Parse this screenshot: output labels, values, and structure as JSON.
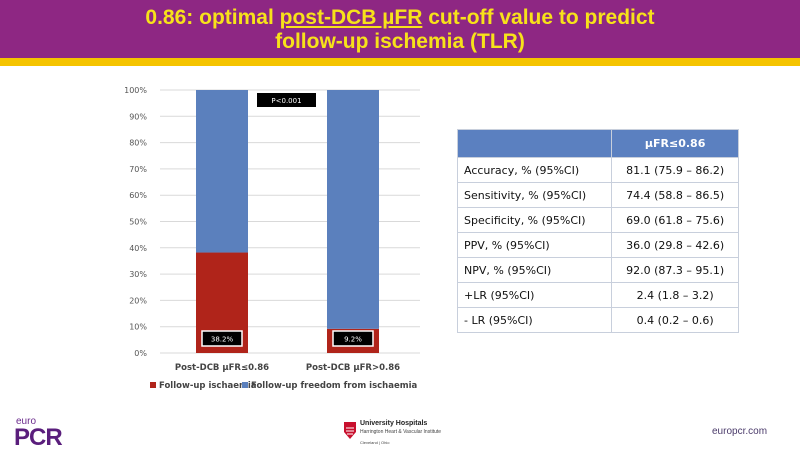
{
  "header": {
    "title_prefix": "0.86: optimal ",
    "title_underlined": "post-DCB µFR",
    "title_suffix": " cut-off value to predict",
    "title_line2": "follow-up ischemia (TLR)"
  },
  "chart_data": {
    "type": "bar",
    "stacked": true,
    "categories": [
      "Post-DCB µFR≤0.86",
      "Post-DCB µFR>0.86"
    ],
    "series": [
      {
        "name": "Follow-up ischaemia",
        "values": [
          38.2,
          9.2
        ],
        "color": "#b0241a"
      },
      {
        "name": "Follow-up freedom from ischaemia",
        "values": [
          61.8,
          90.8
        ],
        "color": "#5b80bd"
      }
    ],
    "data_labels": [
      "38.2%",
      "9.2%"
    ],
    "annotation": "P<0.001",
    "yticks": [
      "0%",
      "10%",
      "20%",
      "30%",
      "40%",
      "50%",
      "60%",
      "70%",
      "80%",
      "90%",
      "100%"
    ],
    "ylim": [
      0,
      100
    ],
    "grid": true,
    "legend": "bottom"
  },
  "table": {
    "header": "µFR≤0.86",
    "rows": [
      {
        "label": "Accuracy, % (95%CI)",
        "value": "81.1 (75.9 – 86.2)"
      },
      {
        "label": "Sensitivity, % (95%CI)",
        "value": "74.4 (58.8 – 86.5)"
      },
      {
        "label": "Specificity, % (95%CI)",
        "value": "69.0 (61.8 – 75.6)"
      },
      {
        "label": "PPV, % (95%CI)",
        "value": "36.0 (29.8 – 42.6)"
      },
      {
        "label": "NPV, % (95%CI)",
        "value": "92.0 (87.3 – 95.1)"
      },
      {
        "label": "+LR (95%CI)",
        "value": "2.4 (1.8 – 3.2)"
      },
      {
        "label": "- LR (95%CI)",
        "value": "0.4 (0.2 – 0.6)"
      }
    ]
  },
  "footer": {
    "euro": "euro",
    "pcr": "PCR",
    "uh_name": "University Hospitals",
    "uh_sub": "Harrington Heart & Vascular Institute",
    "uh_city": "Cleveland | Ohio",
    "site": "europcr.com"
  }
}
